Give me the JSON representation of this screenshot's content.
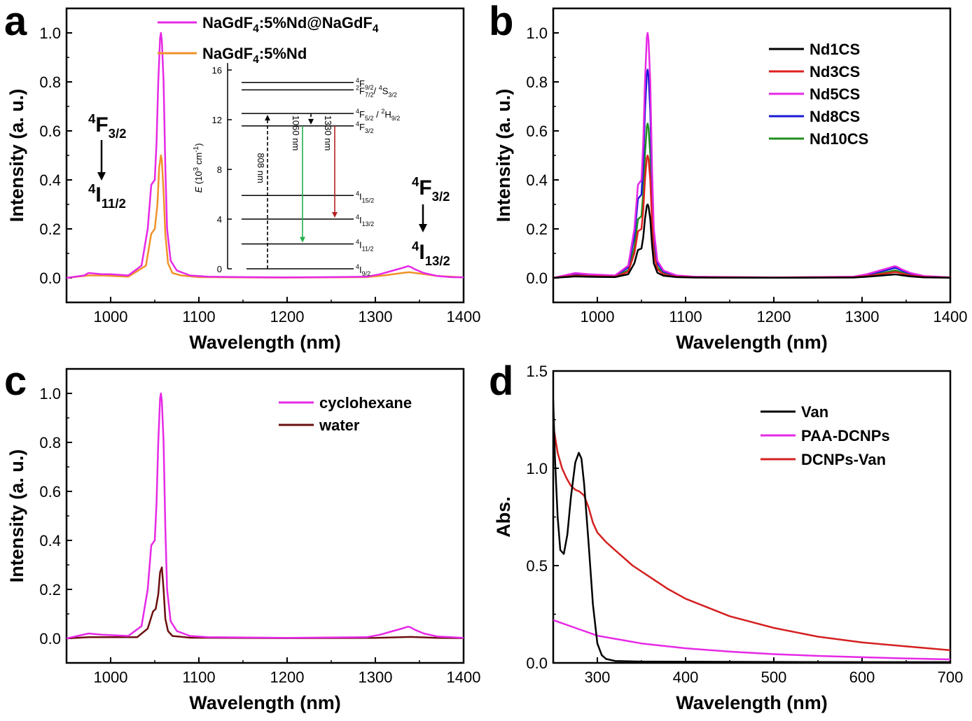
{
  "figure": {
    "panels": [
      {
        "letter": "a",
        "chart_data": {
          "type": "line",
          "xlabel": "Wavelength (nm)",
          "ylabel": "Intensity (a. u.)",
          "xlim": [
            950,
            1400
          ],
          "ylim": [
            -0.1,
            1.1
          ],
          "xticks": [
            1000,
            1100,
            1200,
            1300,
            1400
          ],
          "yticks": [
            0.0,
            0.2,
            0.4,
            0.6,
            0.8,
            1.0
          ],
          "xtick_labels": [
            "1000",
            "1100",
            "1200",
            "1300",
            "1400"
          ],
          "ytick_labels": [
            "0.0",
            "0.2",
            "0.4",
            "0.6",
            "0.8",
            "1.0"
          ],
          "legend_position": "top-center",
          "series": [
            {
              "name": "NaGdF4:5%Nd@NaGdF4",
              "label_parts": [
                "NaGdF",
                "4",
                ":5%Nd@NaGdF",
                "4"
              ],
              "color": "#e629e6",
              "x": [
                950,
                970,
                975,
                990,
                1000,
                1020,
                1035,
                1042,
                1046,
                1050,
                1052,
                1054,
                1056,
                1057,
                1058,
                1060,
                1062,
                1064,
                1068,
                1075,
                1090,
                1110,
                1150,
                1200,
                1250,
                1290,
                1305,
                1320,
                1330,
                1337,
                1340,
                1345,
                1355,
                1370,
                1385,
                1400
              ],
              "y": [
                0.0,
                0.01,
                0.02,
                0.015,
                0.015,
                0.01,
                0.05,
                0.2,
                0.38,
                0.4,
                0.55,
                0.8,
                0.98,
                1.0,
                0.97,
                0.8,
                0.45,
                0.2,
                0.07,
                0.03,
                0.01,
                0.005,
                0.003,
                0.002,
                0.003,
                0.005,
                0.015,
                0.03,
                0.04,
                0.048,
                0.045,
                0.035,
                0.02,
                0.008,
                0.003,
                0.002
              ]
            },
            {
              "name": "NaGdF4:5%Nd",
              "label_parts": [
                "NaGdF",
                "4",
                ":5%Nd",
                ""
              ],
              "color": "#f0922a",
              "x": [
                950,
                975,
                990,
                1020,
                1040,
                1046,
                1050,
                1053,
                1055,
                1057,
                1058,
                1060,
                1062,
                1065,
                1070,
                1080,
                1100,
                1200,
                1290,
                1310,
                1330,
                1338,
                1350,
                1370,
                1400
              ],
              "y": [
                0.0,
                0.01,
                0.01,
                0.005,
                0.05,
                0.18,
                0.2,
                0.3,
                0.45,
                0.5,
                0.48,
                0.35,
                0.18,
                0.06,
                0.02,
                0.01,
                0.003,
                0.001,
                0.003,
                0.01,
                0.02,
                0.023,
                0.018,
                0.008,
                0.002
              ]
            }
          ],
          "annotations": {
            "left_upper": {
              "base": "F",
              "sup": "4",
              "sub": "3/2"
            },
            "left_lower": {
              "base": "I",
              "sup": "4",
              "sub": "11/2"
            },
            "right_upper": {
              "base": "F",
              "sup": "4",
              "sub": "3/2"
            },
            "right_lower": {
              "base": "I",
              "sup": "4",
              "sub": "13/2"
            }
          },
          "inset": {
            "ylabel_parts": [
              "E",
              " (10",
              "3",
              " cm",
              "-1",
              ")"
            ],
            "ylim": [
              0,
              16
            ],
            "yticks": [
              0,
              4,
              8,
              12,
              16
            ],
            "ytick_labels": [
              "0",
              "4",
              "8",
              "12",
              "16"
            ],
            "levels": [
              {
                "energy": 15.0,
                "label": "9/2",
                "base": "F",
                "sup": "4",
                "tail": ""
              },
              {
                "energy": 14.4,
                "label": "7/2",
                "base": "F",
                "sup": "2",
                "tail": "/ 4S3/2",
                "tail_parts": [
                  "/ ",
                  "4",
                  "S",
                  "3/2"
                ]
              },
              {
                "energy": 12.5,
                "label": "5/2",
                "base": "F",
                "sup": "4",
                "tail": "/ 2H9/2",
                "tail_parts": [
                  " / ",
                  "2",
                  "H",
                  "9/2"
                ]
              },
              {
                "energy": 11.5,
                "label": "3/2",
                "base": "F",
                "sup": "4",
                "tail": ""
              },
              {
                "energy": 5.9,
                "label": "15/2",
                "base": "I",
                "sup": "4",
                "tail": ""
              },
              {
                "energy": 4.0,
                "label": "13/2",
                "base": "I",
                "sup": "4",
                "tail": ""
              },
              {
                "energy": 2.0,
                "label": "11/2",
                "base": "I",
                "sup": "4",
                "tail": ""
              },
              {
                "energy": 0.0,
                "label": "9/2",
                "base": "I",
                "sup": "4",
                "tail": ""
              }
            ],
            "transitions": [
              {
                "label": "808 nm",
                "from": 0.0,
                "to": 12.5,
                "color": "#000000",
                "style": "dashed"
              },
              {
                "label": "1060 nm",
                "from": 11.5,
                "to": 2.0,
                "color": "#22b14c",
                "style": "solid"
              },
              {
                "label": "1330 nm",
                "from": 11.5,
                "to": 4.0,
                "color": "#b22222",
                "style": "solid"
              },
              {
                "label": "",
                "from": 12.5,
                "to": 11.5,
                "color": "#000000",
                "style": "dashed"
              }
            ]
          }
        }
      },
      {
        "letter": "b",
        "chart_data": {
          "type": "line",
          "xlabel": "Wavelength (nm)",
          "ylabel": "Intensity (a. u.)",
          "xlim": [
            950,
            1400
          ],
          "ylim": [
            -0.1,
            1.1
          ],
          "xticks": [
            1000,
            1100,
            1200,
            1300,
            1400
          ],
          "yticks": [
            0.0,
            0.2,
            0.4,
            0.6,
            0.8,
            1.0
          ],
          "xtick_labels": [
            "1000",
            "1100",
            "1200",
            "1300",
            "1400"
          ],
          "ytick_labels": [
            "0.0",
            "0.2",
            "0.4",
            "0.6",
            "0.8",
            "1.0"
          ],
          "legend_position": "top-right",
          "peak_x": [
            950,
            975,
            990,
            1020,
            1035,
            1042,
            1046,
            1050,
            1052,
            1054,
            1056,
            1057,
            1058,
            1060,
            1062,
            1064,
            1068,
            1075,
            1090,
            1110,
            1200,
            1290,
            1305,
            1320,
            1330,
            1337,
            1340,
            1345,
            1355,
            1370,
            1400
          ],
          "peak_shape": [
            0.0,
            0.02,
            0.015,
            0.01,
            0.05,
            0.2,
            0.38,
            0.4,
            0.55,
            0.8,
            0.98,
            1.0,
            0.97,
            0.8,
            0.45,
            0.2,
            0.07,
            0.03,
            0.01,
            0.005,
            0.002,
            0.005,
            0.015,
            0.03,
            0.04,
            0.048,
            0.045,
            0.035,
            0.02,
            0.008,
            0.002
          ],
          "series": [
            {
              "name": "Nd1CS",
              "color": "#000000",
              "peak": 0.3
            },
            {
              "name": "Nd3CS",
              "color": "#e02020",
              "peak": 0.5
            },
            {
              "name": "Nd5CS",
              "color": "#e629e6",
              "peak": 1.0
            },
            {
              "name": "Nd8CS",
              "color": "#1a1ad6",
              "peak": 0.85
            },
            {
              "name": "Nd10CS",
              "color": "#1f8f1f",
              "peak": 0.63
            }
          ]
        }
      },
      {
        "letter": "c",
        "chart_data": {
          "type": "line",
          "xlabel": "Wavelength (nm)",
          "ylabel": "Intensity (a. u.)",
          "xlim": [
            950,
            1400
          ],
          "ylim": [
            -0.1,
            1.1
          ],
          "xticks": [
            1000,
            1100,
            1200,
            1300,
            1400
          ],
          "yticks": [
            0.0,
            0.2,
            0.4,
            0.6,
            0.8,
            1.0
          ],
          "xtick_labels": [
            "1000",
            "1100",
            "1200",
            "1300",
            "1400"
          ],
          "ytick_labels": [
            "0.0",
            "0.2",
            "0.4",
            "0.6",
            "0.8",
            "1.0"
          ],
          "legend_position": "top-right",
          "series": [
            {
              "name": "cyclohexane",
              "color": "#e629e6",
              "x": [
                950,
                975,
                990,
                1020,
                1035,
                1042,
                1046,
                1050,
                1052,
                1054,
                1056,
                1057,
                1058,
                1060,
                1062,
                1064,
                1068,
                1075,
                1090,
                1110,
                1200,
                1290,
                1305,
                1320,
                1330,
                1337,
                1340,
                1345,
                1355,
                1370,
                1400
              ],
              "y": [
                0.0,
                0.02,
                0.015,
                0.01,
                0.05,
                0.2,
                0.38,
                0.4,
                0.55,
                0.8,
                0.98,
                1.0,
                0.97,
                0.8,
                0.45,
                0.2,
                0.07,
                0.03,
                0.01,
                0.005,
                0.002,
                0.005,
                0.015,
                0.03,
                0.04,
                0.048,
                0.045,
                0.035,
                0.02,
                0.008,
                0.002
              ]
            },
            {
              "name": "water",
              "color": "#6b0f0f",
              "x": [
                950,
                975,
                1000,
                1030,
                1042,
                1048,
                1051,
                1054,
                1056,
                1058,
                1060,
                1062,
                1065,
                1070,
                1090,
                1200,
                1300,
                1340,
                1370,
                1400
              ],
              "y": [
                0.0,
                0.005,
                0.005,
                0.005,
                0.04,
                0.11,
                0.12,
                0.18,
                0.27,
                0.29,
                0.2,
                0.08,
                0.03,
                0.01,
                0.003,
                0.001,
                0.002,
                0.006,
                0.002,
                0.001
              ]
            }
          ]
        }
      },
      {
        "letter": "d",
        "chart_data": {
          "type": "line",
          "xlabel": "Wavelength (nm)",
          "ylabel": "Abs.",
          "xlim": [
            250,
            700
          ],
          "ylim": [
            0.0,
            1.5
          ],
          "xticks": [
            300,
            400,
            500,
            600,
            700
          ],
          "yticks": [
            0.0,
            0.5,
            1.0,
            1.5
          ],
          "xtick_labels": [
            "300",
            "400",
            "500",
            "600",
            "700"
          ],
          "ytick_labels": [
            "0.0",
            "0.5",
            "1.0",
            "1.5"
          ],
          "legend_position": "top-right",
          "series": [
            {
              "name": "Van",
              "color": "#000000",
              "x": [
                250,
                252,
                255,
                258,
                262,
                266,
                270,
                275,
                279,
                282,
                285,
                290,
                295,
                300,
                305,
                310,
                320,
                350,
                400,
                500,
                600,
                700
              ],
              "y": [
                1.35,
                1.05,
                0.75,
                0.58,
                0.56,
                0.66,
                0.85,
                1.03,
                1.08,
                1.05,
                0.92,
                0.62,
                0.3,
                0.1,
                0.04,
                0.02,
                0.01,
                0.007,
                0.006,
                0.005,
                0.004,
                0.004
              ]
            },
            {
              "name": "PAA-DCNPs",
              "color": "#e629e6",
              "x": [
                250,
                275,
                300,
                350,
                400,
                450,
                500,
                550,
                600,
                650,
                700
              ],
              "y": [
                0.22,
                0.18,
                0.14,
                0.1,
                0.075,
                0.058,
                0.045,
                0.036,
                0.029,
                0.023,
                0.018
              ]
            },
            {
              "name": "DCNPs-Van",
              "color": "#d42020",
              "x": [
                250,
                255,
                260,
                265,
                270,
                275,
                280,
                285,
                290,
                295,
                300,
                310,
                320,
                340,
                360,
                380,
                400,
                450,
                500,
                550,
                600,
                650,
                700
              ],
              "y": [
                1.22,
                1.08,
                1.0,
                0.95,
                0.91,
                0.89,
                0.88,
                0.86,
                0.8,
                0.72,
                0.67,
                0.62,
                0.58,
                0.5,
                0.44,
                0.38,
                0.33,
                0.24,
                0.18,
                0.135,
                0.105,
                0.085,
                0.065
              ]
            }
          ]
        }
      }
    ]
  }
}
